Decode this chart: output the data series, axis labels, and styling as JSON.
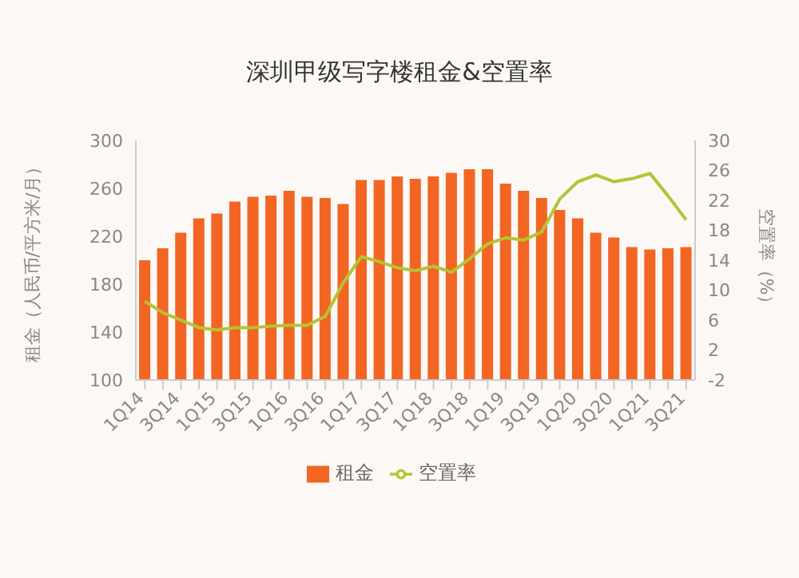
{
  "chart_data": {
    "type": "bar",
    "title": "深圳甲级写字楼租金&空置率",
    "ylabel": "租金（人民币/平方米/月）",
    "y2label": "空置率（%）",
    "categories": [
      "1Q14",
      null,
      "3Q14",
      null,
      "1Q15",
      null,
      "3Q15",
      null,
      "1Q16",
      null,
      "3Q16",
      null,
      "1Q17",
      null,
      "3Q17",
      null,
      "1Q18",
      null,
      "3Q18",
      null,
      "1Q19",
      null,
      "3Q19",
      null,
      "1Q20",
      null,
      "3Q20",
      null,
      "1Q21",
      null,
      "3Q21"
    ],
    "series": [
      {
        "name": "租金",
        "color": "#f26522",
        "values": [
          200,
          210,
          223,
          235,
          239,
          249,
          253,
          254,
          258,
          253,
          252,
          247,
          267,
          267,
          270,
          268,
          270,
          273,
          276,
          276,
          264,
          258,
          252,
          242,
          235,
          223,
          219,
          211,
          209,
          210,
          211
        ]
      },
      {
        "name": "空置率",
        "type": "line",
        "axis": "y2",
        "color": "#b5c334",
        "values": [
          8.5,
          7,
          6,
          5,
          4.7,
          5,
          5,
          5.2,
          5.3,
          5.3,
          6.5,
          11,
          14.5,
          13.8,
          13,
          12.6,
          13.2,
          12.4,
          14.2,
          16.2,
          17,
          16.7,
          17.8,
          22.2,
          24.5,
          25.4,
          24.5,
          24.9,
          25.6,
          22.6,
          19.4
        ]
      }
    ],
    "ylim": [
      100,
      300
    ],
    "yticks": [
      100,
      140,
      180,
      220,
      260,
      300
    ],
    "y2lim": [
      -2,
      30
    ],
    "y2ticks": [
      -2,
      2,
      6,
      10,
      14,
      18,
      22,
      26,
      30
    ],
    "grid": false,
    "legend": "bottom",
    "marker": "none"
  }
}
